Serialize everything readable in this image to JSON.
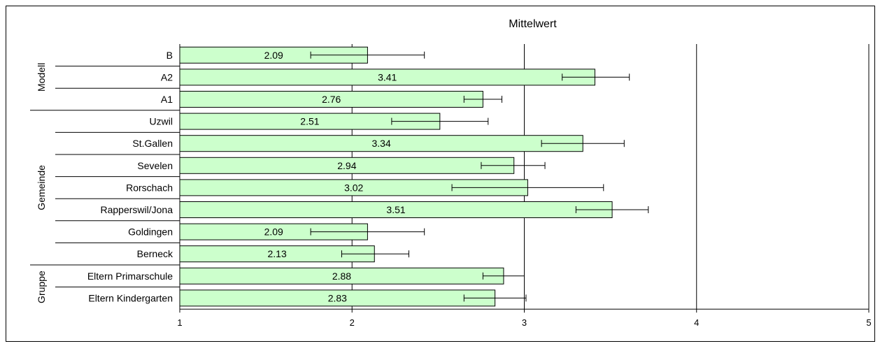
{
  "chart_data": {
    "type": "bar",
    "orientation": "horizontal",
    "title": "Mittelwert",
    "xlabel": "",
    "ylabel": "",
    "xlim": [
      1,
      5
    ],
    "xticks": [
      "1",
      "2",
      "3",
      "4",
      "5"
    ],
    "grid": "vertical",
    "bar_color": "#ccffcc",
    "groups": [
      {
        "label": "Modell",
        "categories": [
          "B",
          "A2",
          "A1"
        ],
        "values": [
          2.09,
          3.41,
          2.76
        ],
        "value_labels": [
          "2.09",
          "3.41",
          "2.76"
        ],
        "error_low": [
          1.76,
          3.22,
          2.65
        ],
        "error_high": [
          2.42,
          3.61,
          2.87
        ]
      },
      {
        "label": "Gemeinde",
        "categories": [
          "Uzwil",
          "St.Gallen",
          "Sevelen",
          "Rorschach",
          "Rapperswil/Jona",
          "Goldingen",
          "Berneck"
        ],
        "values": [
          2.51,
          3.34,
          2.94,
          3.02,
          3.51,
          2.09,
          2.13
        ],
        "value_labels": [
          "2.51",
          "3.34",
          "2.94",
          "3.02",
          "3.51",
          "2.09",
          "2.13"
        ],
        "error_low": [
          2.23,
          3.1,
          2.75,
          2.58,
          3.3,
          1.76,
          1.94
        ],
        "error_high": [
          2.79,
          3.58,
          3.12,
          3.46,
          3.72,
          2.42,
          2.33
        ]
      },
      {
        "label": "Gruppe",
        "categories": [
          "Eltern Primarschule",
          "Eltern Kindergarten"
        ],
        "values": [
          2.88,
          2.83
        ],
        "value_labels": [
          "2.88",
          "2.83"
        ],
        "error_low": [
          2.76,
          2.65
        ],
        "error_high": [
          3.0,
          3.01
        ]
      }
    ]
  }
}
